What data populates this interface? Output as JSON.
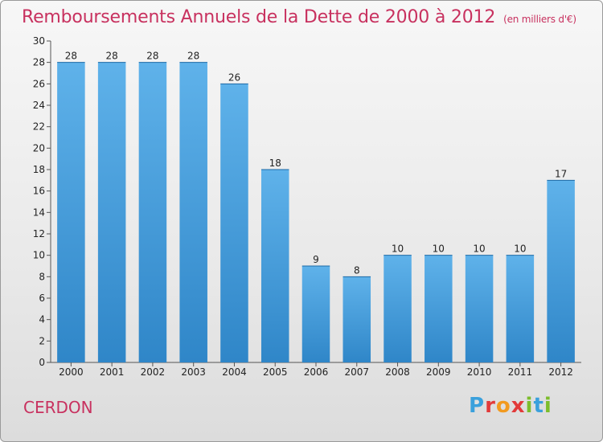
{
  "header": {
    "title": "Remboursements Annuels de la Dette de 2000 à 2012",
    "unit": "(en milliers d'€)"
  },
  "footer": {
    "commune": "CERDON",
    "logo": "Proxiti"
  },
  "colors": {
    "bar": "#4a9fdc",
    "title": "#c8315f"
  },
  "chart_data": {
    "type": "bar",
    "title": "Remboursements Annuels de la Dette de 2000 à 2012",
    "categories": [
      "2000",
      "2001",
      "2002",
      "2003",
      "2004",
      "2005",
      "2006",
      "2007",
      "2008",
      "2009",
      "2010",
      "2011",
      "2012"
    ],
    "values": [
      28,
      28,
      28,
      28,
      26,
      18,
      9,
      8,
      10,
      10,
      10,
      10,
      17
    ],
    "ylim": [
      0,
      30
    ],
    "yticks": [
      0,
      2,
      4,
      6,
      8,
      10,
      12,
      14,
      16,
      18,
      20,
      22,
      24,
      26,
      28,
      30
    ],
    "grid": false,
    "legend": "none"
  }
}
